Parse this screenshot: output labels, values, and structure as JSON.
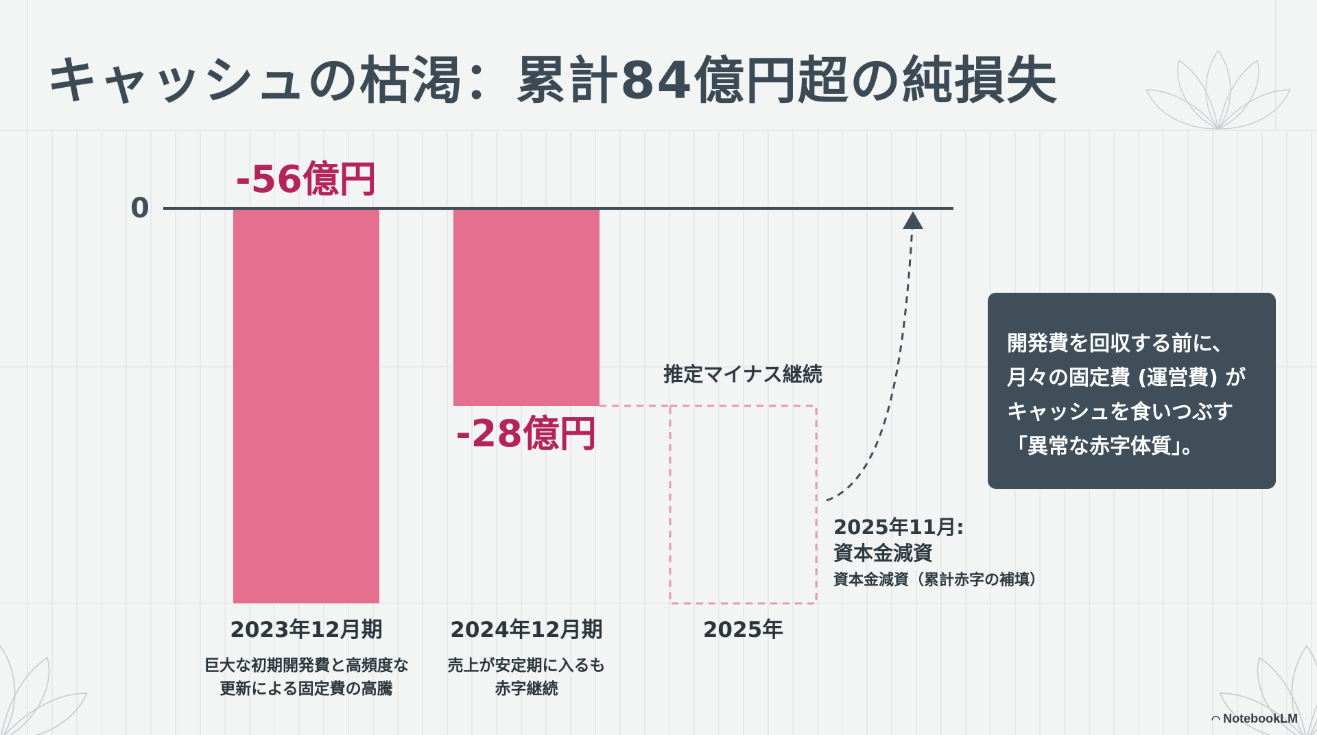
{
  "slide": {
    "title": "キャッシュの枯渇：累計84億円超の純損失",
    "callout_lines": [
      "開発費を回収する前に、",
      "月々の固定費 (運営費) が",
      "キャッシュを食いつぶす",
      "「異常な赤字体質」。"
    ],
    "brand": "NotebookLM"
  },
  "colors": {
    "bar": "#e46f8f",
    "value_label": "#b3245a",
    "dashed": "#e59ab1",
    "axis": "#3f4e58",
    "callout_bg": "#3f4e58"
  },
  "chart_data": {
    "type": "bar",
    "title": "",
    "xlabel": "",
    "ylabel": "",
    "ylim": [
      -56,
      0
    ],
    "zero_label": "0",
    "grid": true,
    "categories": [
      "2023年12月期",
      "2024年12月期",
      "2025年"
    ],
    "values": [
      -56,
      -28,
      null
    ],
    "value_labels": [
      "-56億円",
      "-28億円",
      ""
    ],
    "descriptions": [
      [
        "巨大な初期開発費と高頻度な",
        "更新による固定費の高騰"
      ],
      [
        "売上が安定期に入るも",
        "赤字継続"
      ],
      []
    ],
    "annotations": {
      "estimate_label": "推定マイナス継続",
      "event_date": "2025年11月:",
      "event_title": "資本金減資",
      "event_note": "資本金減資（累計赤字の補填）"
    }
  }
}
